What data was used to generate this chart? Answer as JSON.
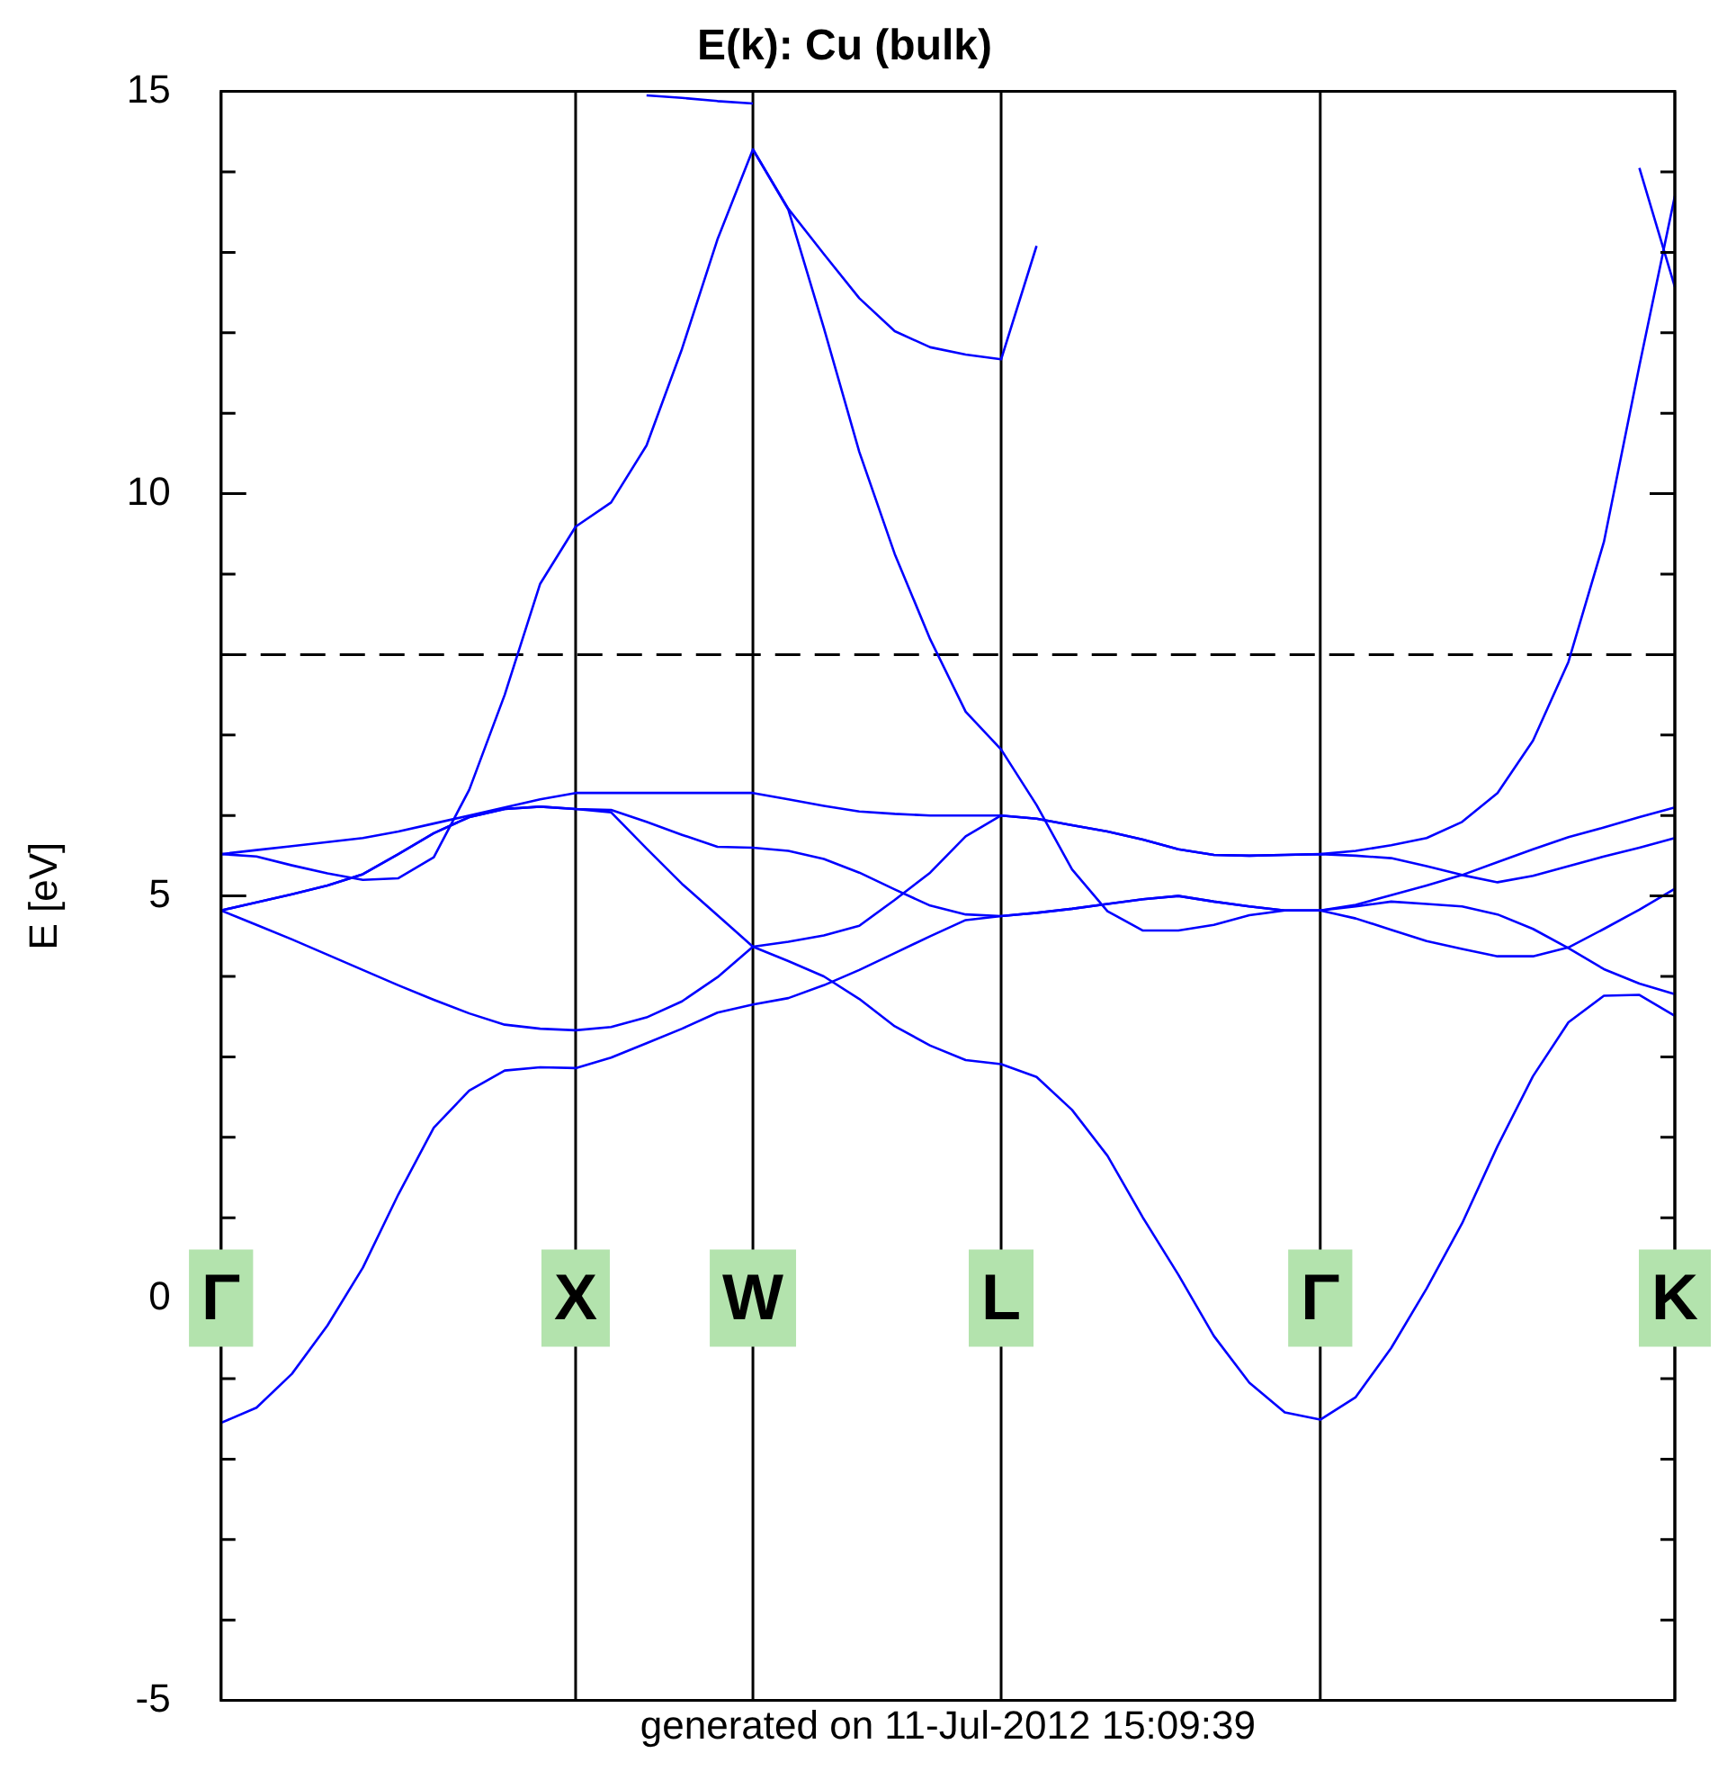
{
  "chart_data": {
    "type": "line",
    "title": "E(k): Cu (bulk)",
    "ylabel": "E [eV]",
    "annotations": [
      "generated on 11-Jul-2012 15:09:39"
    ],
    "categories": [
      "Γ",
      null,
      null,
      null,
      null,
      null,
      null,
      null,
      null,
      null,
      "X",
      null,
      null,
      null,
      null,
      "W",
      null,
      null,
      null,
      null,
      null,
      null,
      "L",
      null,
      null,
      null,
      null,
      null,
      null,
      null,
      null,
      "Γ",
      null,
      null,
      null,
      null,
      null,
      null,
      null,
      null,
      null,
      "K"
    ],
    "ylim": [
      -5,
      15
    ],
    "yticks": [
      -5,
      {
        "value": -4,
        "label": null
      },
      {
        "value": -3,
        "label": null
      },
      {
        "value": -2,
        "label": null
      },
      {
        "value": -1,
        "label": null
      },
      0,
      {
        "value": 1,
        "label": null
      },
      {
        "value": 2,
        "label": null
      },
      {
        "value": 3,
        "label": null
      },
      {
        "value": 4,
        "label": null
      },
      5,
      {
        "value": 6,
        "label": null
      },
      {
        "value": 7,
        "label": null
      },
      {
        "value": 8,
        "label": null
      },
      {
        "value": 9,
        "label": null
      },
      10,
      {
        "value": 11,
        "label": null
      },
      {
        "value": 12,
        "label": null
      },
      {
        "value": 13,
        "label": null
      },
      {
        "value": 14,
        "label": null
      },
      15
    ],
    "grid": "x",
    "series": [
      {
        "color": "#0000ff",
        "values": [
          -1.55,
          -1.36,
          -0.94,
          -0.34,
          0.38,
          1.29,
          2.12,
          2.58,
          2.83,
          2.87,
          2.86,
          2.99,
          3.17,
          3.35,
          3.55,
          3.65,
          3.73,
          3.89,
          4.08,
          4.29,
          4.5,
          4.7,
          4.75,
          4.79,
          4.84,
          4.9,
          4.96,
          5.0,
          4.93,
          4.87,
          4.82,
          4.82,
          4.89,
          5.01,
          5.13,
          5.26,
          5.42,
          5.58,
          5.73,
          5.85,
          5.98,
          6.1
        ]
      },
      {
        "color": "#0000ff",
        "values": [
          4.82,
          4.64,
          4.46,
          4.27,
          4.08,
          3.89,
          3.71,
          3.54,
          3.4,
          3.35,
          3.33,
          3.37,
          3.49,
          3.69,
          3.99,
          4.37,
          4.19,
          4.0,
          3.72,
          3.38,
          3.14,
          2.96,
          2.91,
          2.75,
          2.34,
          1.77,
          1.0,
          0.29,
          -0.47,
          -1.05,
          -1.42,
          -1.51,
          -1.23,
          -0.62,
          0.12,
          0.93,
          1.89,
          2.76,
          3.43,
          3.76,
          3.77,
          3.51
        ]
      },
      {
        "color": "#0000ff",
        "values": [
          4.82,
          4.92,
          5.02,
          5.13,
          5.27,
          5.52,
          5.78,
          5.98,
          6.08,
          6.11,
          6.08,
          6.04,
          5.59,
          5.15,
          4.76,
          4.37,
          4.43,
          4.51,
          4.63,
          4.95,
          5.29,
          5.74,
          6.0,
          5.96,
          5.88,
          5.8,
          5.7,
          5.58,
          5.51,
          5.5,
          5.51,
          5.52,
          5.56,
          5.63,
          5.72,
          5.92,
          6.28,
          6.93,
          7.91,
          9.4,
          11.59,
          13.7
        ]
      },
      {
        "color": "#0000ff",
        "values": [
          5.52,
          5.49,
          5.38,
          5.28,
          5.2,
          5.22,
          5.48,
          6.32,
          7.5,
          8.88,
          9.59,
          9.89,
          10.6,
          11.8,
          13.16,
          14.28,
          13.54,
          12.98,
          12.43,
          12.02,
          11.82,
          11.73,
          11.67,
          13.08,
          null,
          null,
          null,
          null,
          null,
          null,
          null,
          null,
          null,
          null,
          null,
          null,
          null,
          null,
          null,
          null,
          null,
          null
        ]
      },
      {
        "color": "#0000ff",
        "values": [
          null,
          null,
          null,
          null,
          null,
          null,
          null,
          null,
          null,
          null,
          null,
          null,
          null,
          null,
          null,
          14.28,
          13.53,
          12.06,
          10.52,
          9.25,
          8.19,
          7.29,
          6.82,
          6.13,
          5.33,
          4.81,
          4.57,
          4.57,
          4.64,
          4.76,
          4.82,
          4.82,
          4.72,
          4.58,
          4.44,
          4.34,
          4.25,
          4.25,
          4.36,
          4.59,
          4.83,
          5.09
        ]
      },
      {
        "color": "#0000ff",
        "values": [
          5.52,
          5.57,
          5.62,
          5.67,
          5.72,
          5.8,
          5.9,
          6.0,
          6.1,
          6.2,
          6.28,
          6.28,
          6.28,
          6.28,
          6.28,
          6.28,
          6.2,
          6.12,
          6.05,
          6.02,
          6.0,
          6.0,
          6.0,
          5.96,
          5.88,
          5.8,
          5.7,
          5.58,
          5.51,
          5.5,
          5.51,
          5.52,
          5.5,
          5.47,
          5.37,
          5.26,
          5.17,
          5.25,
          5.37,
          5.49,
          5.6,
          5.72
        ]
      },
      {
        "color": "#0000ff",
        "values": [
          4.82,
          4.92,
          5.02,
          5.13,
          5.27,
          5.52,
          5.78,
          5.98,
          6.08,
          6.11,
          6.08,
          6.07,
          5.92,
          5.76,
          5.61,
          5.6,
          5.56,
          5.46,
          5.29,
          5.08,
          4.88,
          4.77,
          4.75,
          4.79,
          4.84,
          4.9,
          4.96,
          5.0,
          4.93,
          4.87,
          4.82,
          4.82,
          4.87,
          4.93,
          4.9,
          4.87,
          4.77,
          4.59,
          4.35,
          4.09,
          3.91,
          3.78
        ]
      },
      {
        "color": "#0000ff",
        "values": [
          null,
          null,
          null,
          null,
          null,
          null,
          null,
          null,
          null,
          null,
          null,
          null,
          14.95,
          14.92,
          14.88,
          14.85,
          null,
          null,
          null,
          null,
          null,
          null,
          null,
          null,
          null,
          null,
          null,
          null,
          null,
          null,
          null,
          null,
          null,
          null,
          null,
          null,
          null,
          null,
          null,
          null,
          null,
          null
        ]
      },
      {
        "color": "#0000ff",
        "values": [
          null,
          null,
          null,
          null,
          null,
          null,
          null,
          null,
          null,
          null,
          null,
          null,
          null,
          null,
          null,
          null,
          null,
          null,
          null,
          null,
          null,
          null,
          null,
          null,
          null,
          null,
          null,
          null,
          null,
          null,
          null,
          null,
          null,
          null,
          null,
          null,
          null,
          null,
          null,
          null,
          14.05,
          12.57
        ]
      }
    ],
    "ref_lines": [
      {
        "axis": "y",
        "value": 8,
        "color": "#000000",
        "line_style": "dashed"
      }
    ]
  }
}
